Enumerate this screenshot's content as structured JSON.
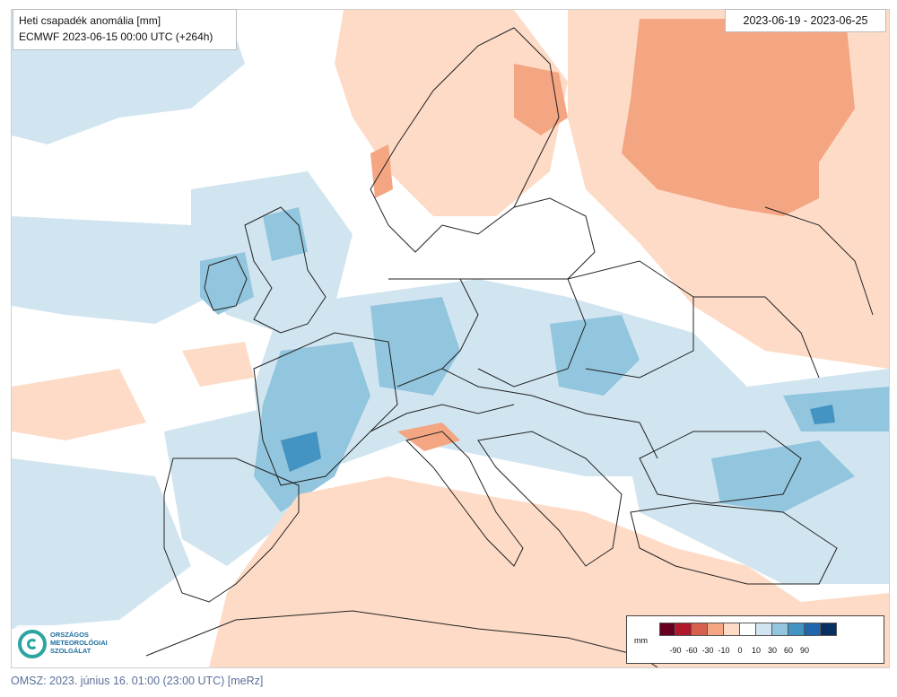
{
  "title": {
    "line1": "Heti csapadék anomália [mm]",
    "line2": "ECMWF 2023-06-15 00:00 UTC (+264h)"
  },
  "date_range": "2023-06-19 - 2023-06-25",
  "legend": {
    "unit": "mm",
    "colors": [
      "#67001f",
      "#b2182b",
      "#d6604d",
      "#f4a582",
      "#fddbc7",
      "#ffffff",
      "#d1e5f0",
      "#92c5de",
      "#4393c3",
      "#2166ac",
      "#053061"
    ],
    "ticks": [
      "-90",
      "-60",
      "-30",
      "-10",
      "0",
      "10",
      "30",
      "60",
      "90"
    ]
  },
  "logo": {
    "line1": "ORSZÁGOS",
    "line2": "METEOROLÓGIAI",
    "line3": "SZOLGÁLAT"
  },
  "footer": "OMSZ: 2023. június 16. 01:00 (23:00  UTC)  [meRz]",
  "colors": {
    "dry_light": "#fddbc7",
    "dry_mid": "#f4a582",
    "wet_light": "#d1e5f0",
    "wet_mid": "#92c5de",
    "wet_strong": "#4393c3",
    "border": "#222222"
  }
}
